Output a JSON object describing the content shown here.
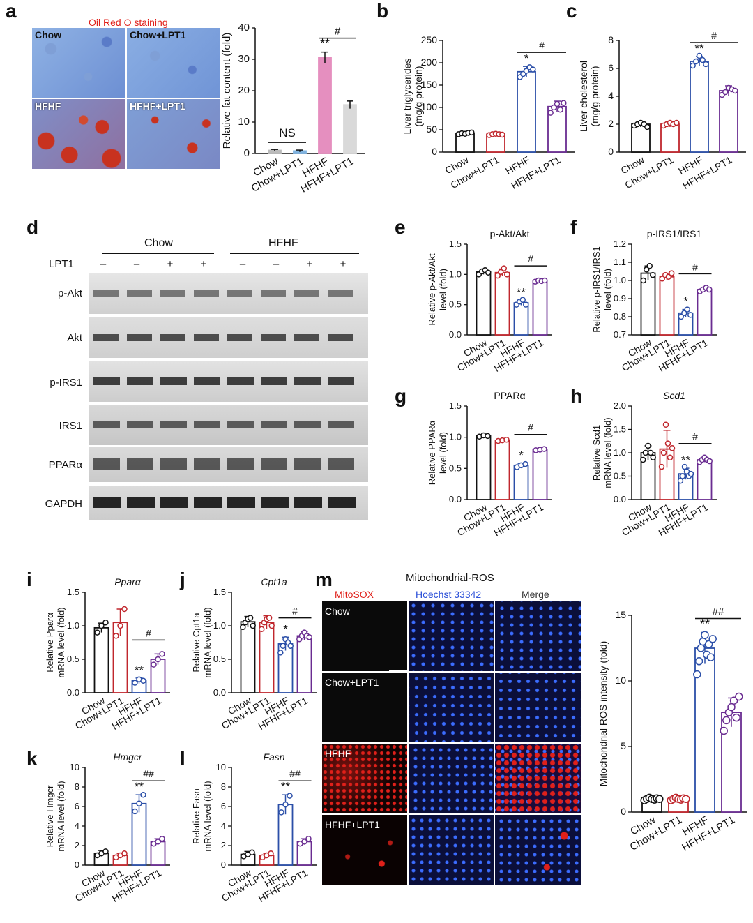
{
  "colors": {
    "chow": "#111111",
    "chow_lpt1": "#c0272d",
    "hfhf": "#2b4fa8",
    "hfhf_lpt1": "#6a2c91",
    "a_hfhf": "#e58fbf",
    "a_hfhf_lpt1": "#d9d9d9",
    "a_chow_lpt1": "#7fb3e0",
    "mitosox": "#e0201a",
    "hoechst": "#2a4fd8"
  },
  "panel_letters": {
    "a": "a",
    "b": "b",
    "c": "c",
    "d": "d",
    "e": "e",
    "f": "f",
    "g": "g",
    "h": "h",
    "i": "i",
    "j": "j",
    "k": "k",
    "l": "l",
    "m": "m"
  },
  "panel_a": {
    "stain_title": "Oil Red O staining",
    "tiles": [
      {
        "label": "Chow"
      },
      {
        "label": "Chow+LPT1"
      },
      {
        "label": "HFHF"
      },
      {
        "label": "HFHF+LPT1"
      }
    ]
  },
  "panel_d": {
    "groups": [
      "Chow",
      "HFHF"
    ],
    "lpt1_label": "LPT1",
    "lpt1_signs": [
      "–",
      "–",
      "+",
      "+",
      "–",
      "–",
      "+",
      "+"
    ],
    "blots": [
      "p-Akt",
      "Akt",
      "p-IRS1",
      "IRS1",
      "PPARα",
      "GAPDH"
    ]
  },
  "panel_m": {
    "title": "Mitochondrial-ROS",
    "channels": [
      "MitoSOX",
      "Hoechst 33342",
      "Merge"
    ],
    "rows": [
      "Chow",
      "Chow+LPT1",
      "HFHF",
      "HFHF+LPT1"
    ]
  },
  "chart_data": [
    {
      "id": "a",
      "type": "bar",
      "title": "",
      "categories": [
        "Chow",
        "Chow+LPT1",
        "HFHF",
        "HFHF+LPT1"
      ],
      "values": [
        1,
        0.8,
        30.5,
        15.5
      ],
      "errors": [
        0.3,
        0.3,
        1.8,
        1.2
      ],
      "ylabel": "Relative fat content (fold)",
      "ylim": [
        0,
        40
      ],
      "yticks": [
        0,
        10,
        20,
        30,
        40
      ],
      "filled": true,
      "annotations": {
        "ns": "NS",
        "star": "**",
        "hash": "#"
      }
    },
    {
      "id": "b",
      "type": "bar",
      "title": "",
      "categories": [
        "Chow",
        "Chow+LPT1",
        "HFHF",
        "HFHF+LPT1"
      ],
      "values": [
        42,
        40,
        180,
        102
      ],
      "errors": [
        3,
        3,
        12,
        12
      ],
      "ylabel": "Liver triglycerides",
      "ylabel2": "(mg/g protein)",
      "ylim": [
        0,
        250
      ],
      "yticks": [
        0,
        50,
        100,
        150,
        200,
        250
      ],
      "points": [
        [
          40,
          42,
          41,
          43,
          44
        ],
        [
          38,
          40,
          41,
          40,
          39
        ],
        [
          168,
          175,
          182,
          190,
          185
        ],
        [
          88,
          100,
          108,
          95,
          110
        ]
      ],
      "annotations": {
        "star": "*",
        "hash": "#"
      }
    },
    {
      "id": "c",
      "type": "bar",
      "title": "",
      "categories": [
        "Chow",
        "Chow+LPT1",
        "HFHF",
        "HFHF+LPT1"
      ],
      "values": [
        2.0,
        2.0,
        6.5,
        4.4
      ],
      "errors": [
        0.2,
        0.2,
        0.35,
        0.35
      ],
      "ylabel": "Liver cholesterol",
      "ylabel2": "(mg/g protein)",
      "ylim": [
        0,
        8
      ],
      "yticks": [
        0,
        2,
        4,
        6,
        8
      ],
      "points": [
        [
          1.9,
          2.0,
          2.1,
          2.0,
          1.8
        ],
        [
          1.9,
          2.0,
          2.1,
          2.0,
          2.1
        ],
        [
          6.2,
          6.5,
          6.9,
          6.6,
          6.3
        ],
        [
          4.1,
          4.3,
          4.6,
          4.5,
          4.4
        ]
      ],
      "annotations": {
        "star": "**",
        "hash": "#"
      }
    },
    {
      "id": "e",
      "type": "bar",
      "title": "p-Akt/Akt",
      "categories": [
        "Chow",
        "Chow+LPT1",
        "HFHF",
        "HFHF+LPT1"
      ],
      "values": [
        1.04,
        1.03,
        0.53,
        0.89
      ],
      "errors": [
        0.04,
        0.06,
        0.04,
        0.02
      ],
      "ylabel": "Relative p-Akt/Akt",
      "ylabel2": "level (fold)",
      "ylim": [
        0,
        1.5
      ],
      "yticks": [
        0.0,
        0.5,
        1.0,
        1.5
      ],
      "points": [
        [
          1.0,
          1.05,
          1.07,
          1.03
        ],
        [
          0.98,
          1.04,
          1.1,
          1.0
        ],
        [
          0.5,
          0.55,
          0.58,
          0.5
        ],
        [
          0.88,
          0.9,
          0.89,
          0.9
        ]
      ],
      "annotations": {
        "star": "**",
        "hash": "#"
      }
    },
    {
      "id": "f",
      "type": "bar",
      "title": "p-IRS1/IRS1",
      "categories": [
        "Chow",
        "Chow+LPT1",
        "HFHF",
        "HFHF+LPT1"
      ],
      "values": [
        1.04,
        1.02,
        0.82,
        0.95
      ],
      "errors": [
        0.04,
        0.02,
        0.02,
        0.01
      ],
      "ylabel": "Relative p-IRS1/IRS1",
      "ylabel2": "level (fold)",
      "ylim": [
        0.7,
        1.2
      ],
      "yticks": [
        0.7,
        0.8,
        0.9,
        1.0,
        1.1,
        1.2
      ],
      "points": [
        [
          1.0,
          1.06,
          1.08,
          1.03
        ],
        [
          1.01,
          1.03,
          1.02,
          1.04
        ],
        [
          0.8,
          0.82,
          0.84,
          0.81
        ],
        [
          0.94,
          0.95,
          0.96,
          0.95
        ]
      ],
      "annotations": {
        "star": "*",
        "hash": "#"
      }
    },
    {
      "id": "g",
      "type": "bar",
      "title": "PPARα",
      "categories": [
        "Chow",
        "Chow+LPT1",
        "HFHF",
        "HFHF+LPT1"
      ],
      "values": [
        1.02,
        0.95,
        0.55,
        0.8
      ],
      "errors": [
        0.02,
        0.02,
        0.03,
        0.02
      ],
      "ylabel": "Relative PPARα",
      "ylabel2": "level (fold)",
      "ylim": [
        0,
        1.5
      ],
      "yticks": [
        0.0,
        0.5,
        1.0,
        1.5
      ],
      "points": [
        [
          1.01,
          1.03,
          1.02
        ],
        [
          0.94,
          0.95,
          0.96
        ],
        [
          0.52,
          0.55,
          0.57
        ],
        [
          0.79,
          0.8,
          0.81
        ]
      ],
      "annotations": {
        "star": "*",
        "hash": "#"
      }
    },
    {
      "id": "h",
      "type": "bar",
      "title": "Scd1",
      "italic_title": true,
      "categories": [
        "Chow",
        "Chow+LPT1",
        "HFHF",
        "HFHF+LPT1"
      ],
      "values": [
        1.0,
        1.08,
        0.55,
        0.85
      ],
      "errors": [
        0.15,
        0.4,
        0.12,
        0.05
      ],
      "ylabel": "Relative Scd1",
      "ylabel2": "mRNA level (fold)",
      "ylim": [
        0,
        2.0
      ],
      "yticks": [
        0.0,
        0.5,
        1.0,
        1.5,
        2.0
      ],
      "points": [
        [
          0.85,
          1.0,
          1.15,
          1.0,
          0.9
        ],
        [
          0.7,
          1.0,
          1.6,
          1.2,
          0.9,
          1.1
        ],
        [
          0.4,
          0.5,
          0.7,
          0.6,
          0.5,
          0.55
        ],
        [
          0.8,
          0.85,
          0.9,
          0.85,
          0.82
        ]
      ],
      "annotations": {
        "star": "**",
        "hash": "#"
      }
    },
    {
      "id": "i",
      "type": "bar",
      "title": "Pparα",
      "italic_title": true,
      "categories": [
        "Chow",
        "Chow+LPT1",
        "HFHF",
        "HFHF+LPT1"
      ],
      "values": [
        0.97,
        1.05,
        0.18,
        0.5
      ],
      "errors": [
        0.07,
        0.2,
        0.04,
        0.08
      ],
      "ylabel": "Relative Pparα",
      "ylabel2": "mRNA level (fold)",
      "ylim": [
        0,
        1.5
      ],
      "yticks": [
        0.0,
        0.5,
        1.0,
        1.5
      ],
      "points": [
        [
          0.9,
          1.0,
          1.05
        ],
        [
          0.85,
          1.0,
          1.25
        ],
        [
          0.15,
          0.2,
          0.18
        ],
        [
          0.42,
          0.5,
          0.58
        ]
      ],
      "annotations": {
        "star": "**",
        "hash": "#"
      }
    },
    {
      "id": "j",
      "type": "bar",
      "title": "Cpt1a",
      "italic_title": true,
      "categories": [
        "Chow",
        "Chow+LPT1",
        "HFHF",
        "HFHF+LPT1"
      ],
      "values": [
        1.06,
        1.05,
        0.73,
        0.85
      ],
      "errors": [
        0.08,
        0.1,
        0.1,
        0.06
      ],
      "ylabel": "Relative Cpt1a",
      "ylabel2": "mRNA level (fold)",
      "ylim": [
        0,
        1.5
      ],
      "yticks": [
        0.0,
        0.5,
        1.0,
        1.5
      ],
      "points": [
        [
          0.98,
          1.05,
          1.1,
          1.12,
          1.0
        ],
        [
          0.95,
          1.05,
          1.1,
          1.12,
          1.0
        ],
        [
          0.6,
          0.7,
          0.8,
          0.75,
          0.7
        ],
        [
          0.8,
          0.85,
          0.9,
          0.85,
          0.83
        ]
      ],
      "annotations": {
        "star": "*",
        "hash": "#"
      }
    },
    {
      "id": "k",
      "type": "bar",
      "title": "Hmgcr",
      "italic_title": true,
      "categories": [
        "Chow",
        "Chow+LPT1",
        "HFHF",
        "HFHF+LPT1"
      ],
      "values": [
        1.2,
        1.0,
        6.3,
        2.4
      ],
      "errors": [
        0.3,
        0.2,
        0.9,
        0.3
      ],
      "ylabel": "Relative Hmgcr",
      "ylabel2": "mRNA level (fold)",
      "ylim": [
        0,
        10
      ],
      "yticks": [
        0,
        2,
        4,
        6,
        8,
        10
      ],
      "points": [
        [
          1.0,
          1.2,
          1.4
        ],
        [
          0.8,
          1.0,
          1.2
        ],
        [
          5.5,
          6.3,
          7.2
        ],
        [
          2.2,
          2.4,
          2.7
        ]
      ],
      "annotations": {
        "star": "**",
        "hash": "##"
      }
    },
    {
      "id": "l",
      "type": "bar",
      "title": "Fasn",
      "italic_title": true,
      "categories": [
        "Chow",
        "Chow+LPT1",
        "HFHF",
        "HFHF+LPT1"
      ],
      "values": [
        1.1,
        1.0,
        6.2,
        2.4
      ],
      "errors": [
        0.3,
        0.2,
        1.0,
        0.3
      ],
      "ylabel": "Relative Fasn",
      "ylabel2": "mRNA level (fold)",
      "ylim": [
        0,
        10
      ],
      "yticks": [
        0,
        2,
        4,
        6,
        8,
        10
      ],
      "points": [
        [
          0.9,
          1.1,
          1.3
        ],
        [
          0.8,
          1.0,
          1.2
        ],
        [
          5.4,
          6.2,
          7.1
        ],
        [
          2.2,
          2.4,
          2.7
        ]
      ],
      "annotations": {
        "star": "**",
        "hash": "##"
      }
    },
    {
      "id": "m",
      "type": "bar",
      "title": "",
      "categories": [
        "Chow",
        "Chow+LPT1",
        "HFHF",
        "HFHF+LPT1"
      ],
      "values": [
        1.0,
        1.0,
        12.5,
        7.6
      ],
      "errors": [
        0.1,
        0.1,
        1.2,
        1.1
      ],
      "ylabel": "Mitochondrial ROS intensity (fold)",
      "ylim": [
        0,
        15
      ],
      "yticks": [
        0,
        5,
        10,
        15
      ],
      "points": [
        [
          0.9,
          1.0,
          1.1,
          1.0,
          0.95,
          1.05,
          1.0
        ],
        [
          0.9,
          1.0,
          1.1,
          1.0,
          0.95,
          1.05,
          1.0
        ],
        [
          10.5,
          11.5,
          12.5,
          13.0,
          13.5,
          12.0,
          12.8,
          11.8,
          13.2
        ],
        [
          6.2,
          7.0,
          7.6,
          8.0,
          8.5,
          7.2,
          8.8
        ]
      ],
      "annotations": {
        "star": "**",
        "hash": "##"
      }
    }
  ]
}
